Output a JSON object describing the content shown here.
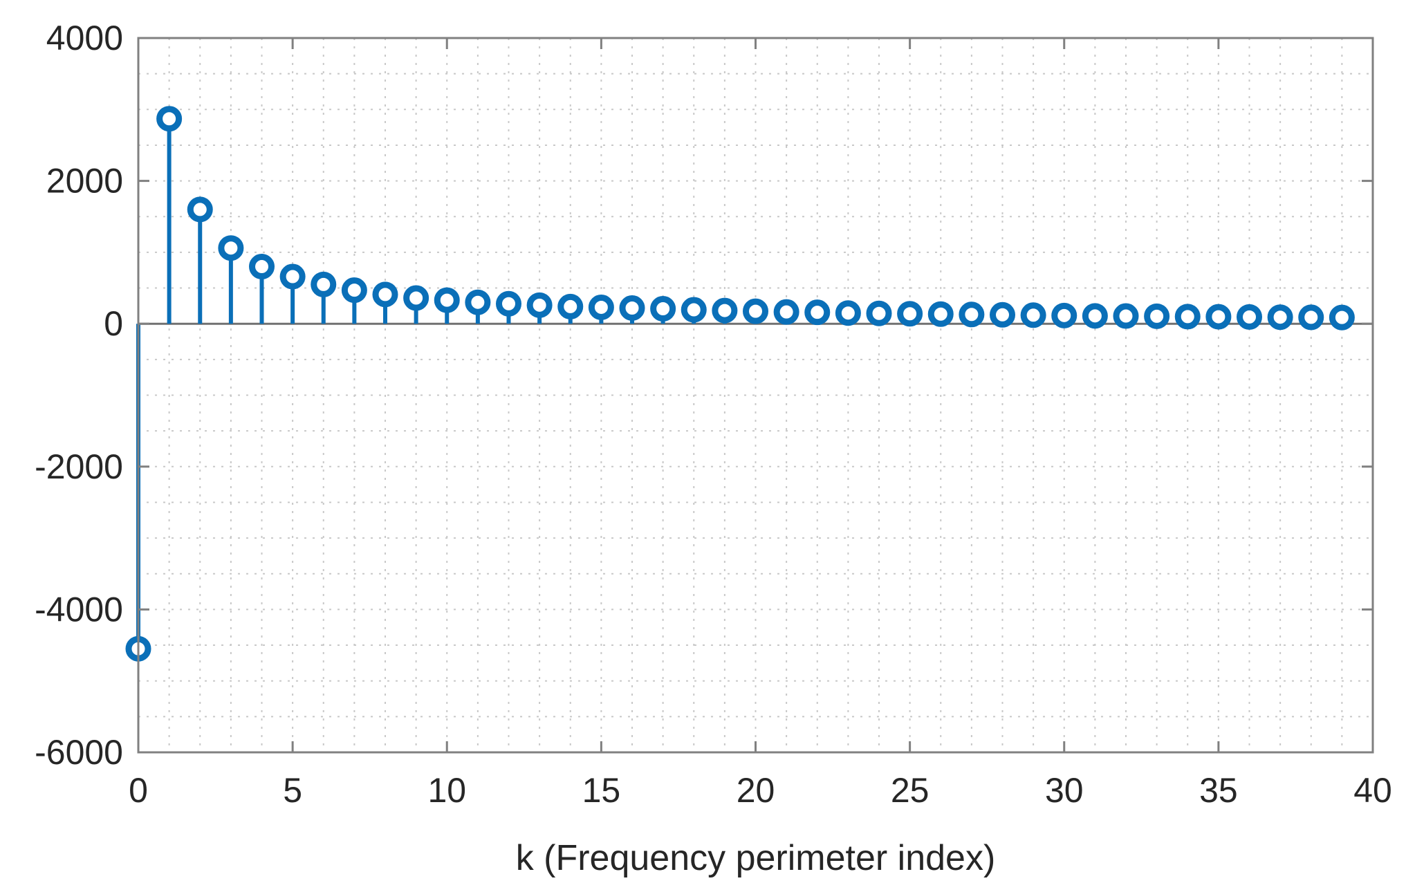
{
  "chart_data": {
    "type": "stem",
    "title": "",
    "xlabel": "k (Frequency perimeter index)",
    "ylabel": "",
    "xlim": [
      0,
      40
    ],
    "ylim": [
      -6000,
      4000
    ],
    "grid": true,
    "x_ticks": [
      "0",
      "5",
      "10",
      "15",
      "20",
      "25",
      "30",
      "35",
      "40"
    ],
    "y_ticks": [
      "4000",
      "2000",
      "0",
      "-2000",
      "-4000",
      "-6000"
    ],
    "x_tick_values": [
      0,
      5,
      10,
      15,
      20,
      25,
      30,
      35,
      40
    ],
    "y_tick_values": [
      4000,
      2000,
      0,
      -2000,
      -4000,
      -6000
    ],
    "series_color": "#0a6fb8",
    "x": [
      0,
      1,
      2,
      3,
      4,
      5,
      6,
      7,
      8,
      9,
      10,
      11,
      12,
      13,
      14,
      15,
      16,
      17,
      18,
      19,
      20,
      21,
      22,
      23,
      24,
      25,
      26,
      27,
      28,
      29,
      30,
      31,
      32,
      33,
      34,
      35,
      36,
      37,
      38,
      39
    ],
    "values": [
      -4550,
      2870,
      1600,
      1060,
      800,
      660,
      550,
      470,
      410,
      360,
      330,
      300,
      280,
      260,
      240,
      230,
      220,
      210,
      195,
      185,
      175,
      165,
      160,
      150,
      145,
      140,
      135,
      130,
      125,
      120,
      115,
      110,
      108,
      105,
      100,
      98,
      95,
      92,
      90,
      88
    ]
  }
}
